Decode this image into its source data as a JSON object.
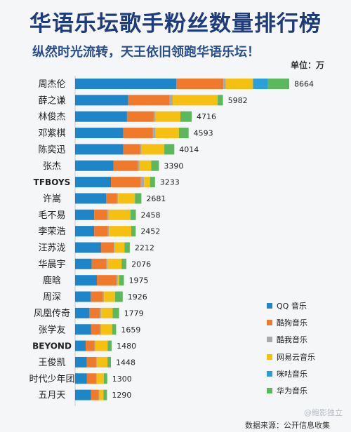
{
  "title": "华语乐坛歌手粉丝数量排行榜",
  "subtitle": "纵然时光流转，天王依旧领跑华语乐坛！",
  "unit_label": "单位：万",
  "source": "数据来源：公开信息收集",
  "watermark": "@鲍影独立",
  "colors": {
    "qq": "#1e86c8",
    "kugou": "#ef7a2c",
    "kuwo": "#a9a9a9",
    "netease": "#f5c012",
    "migu": "#2b9fdb",
    "huawei": "#5cb85c"
  },
  "legend": [
    {
      "name": "QQ 音乐",
      "color": "#1e86c8"
    },
    {
      "name": "酷狗音乐",
      "color": "#ef7a2c"
    },
    {
      "name": "酷我音乐",
      "color": "#a9a9a9"
    },
    {
      "name": "网易云音乐",
      "color": "#f5c012"
    },
    {
      "name": "咪咕音乐",
      "color": "#2b9fdb"
    },
    {
      "name": "华为音乐",
      "color": "#5cb85c"
    }
  ],
  "chart_data": {
    "type": "bar",
    "orientation": "horizontal",
    "stacked": true,
    "title": "华语乐坛歌手粉丝数量排行榜",
    "subtitle": "纵然时光流转，天王依旧领跑华语乐坛！",
    "unit": "单位：万",
    "legend_position": "bottom-right",
    "categories": [
      "周杰伦",
      "薛之谦",
      "林俊杰",
      "邓紫棋",
      "陈奕迅",
      "张杰",
      "TFBOYS",
      "许嵩",
      "毛不易",
      "李荣浩",
      "汪苏泷",
      "华晨宇",
      "鹿晗",
      "周深",
      "凤凰传奇",
      "张学友",
      "BEYOND",
      "王俊凯",
      "时代少年团",
      "五月天"
    ],
    "totals": [
      8664,
      5982,
      4716,
      4593,
      4014,
      3390,
      3233,
      2681,
      2458,
      2452,
      2212,
      2076,
      1975,
      1926,
      1779,
      1659,
      1480,
      1448,
      1300,
      1290
    ],
    "series": [
      {
        "name": "QQ 音乐",
        "values": [
          4100,
          2150,
          2100,
          1950,
          1950,
          1550,
          1450,
          1250,
          770,
          770,
          1050,
          670,
          880,
          630,
          580,
          650,
          430,
          470,
          480,
          640
        ]
      },
      {
        "name": "酷狗音乐",
        "values": [
          1900,
          1680,
          1080,
          1200,
          680,
          990,
          1210,
          450,
          530,
          550,
          520,
          600,
          800,
          500,
          420,
          360,
          350,
          380,
          370,
          320
        ]
      },
      {
        "name": "酷我音乐",
        "values": [
          100,
          120,
          80,
          100,
          60,
          60,
          130,
          40,
          50,
          50,
          40,
          40,
          40,
          40,
          60,
          40,
          40,
          40,
          30,
          30
        ]
      },
      {
        "name": "网易云音乐",
        "values": [
          1100,
          1820,
          1000,
          950,
          920,
          480,
          240,
          680,
          890,
          900,
          390,
          570,
          70,
          450,
          460,
          450,
          500,
          420,
          280,
          160
        ]
      },
      {
        "name": "咪咕音乐",
        "values": [
          600,
          0,
          0,
          0,
          0,
          0,
          0,
          0,
          0,
          0,
          0,
          0,
          0,
          0,
          0,
          0,
          0,
          0,
          0,
          0
        ]
      },
      {
        "name": "华为音乐",
        "values": [
          864,
          212,
          456,
          393,
          404,
          310,
          203,
          261,
          218,
          182,
          212,
          196,
          185,
          306,
          259,
          159,
          160,
          138,
          140,
          140
        ]
      }
    ]
  }
}
